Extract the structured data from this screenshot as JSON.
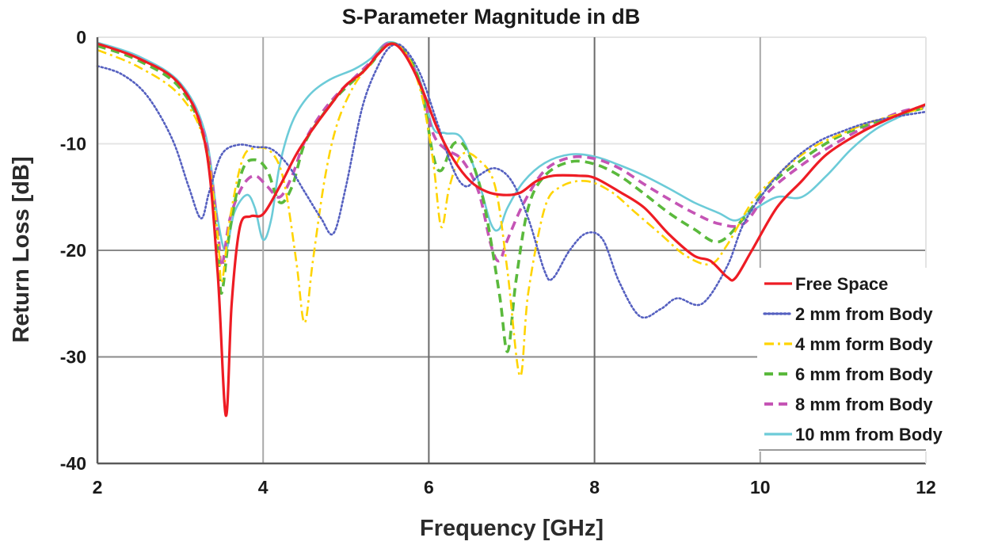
{
  "chart_data": {
    "type": "line",
    "title": "S-Parameter Magnitude in dB",
    "xlabel": "Frequency [GHz]",
    "ylabel": "Return Loss [dB]",
    "xlim": [
      2,
      12
    ],
    "ylim": [
      -40,
      0
    ],
    "xticks": [
      2,
      4,
      6,
      8,
      10,
      12
    ],
    "yticks": [
      0,
      -10,
      -20,
      -30,
      -40
    ],
    "grid": true,
    "legend_position": "bottom-right",
    "series": [
      {
        "name": "Free Space",
        "color": "#ee1c24",
        "dash": "solid",
        "points": [
          [
            2.0,
            -0.6
          ],
          [
            2.5,
            -2.0
          ],
          [
            3.0,
            -4.5
          ],
          [
            3.3,
            -10.0
          ],
          [
            3.45,
            -22.0
          ],
          [
            3.55,
            -35.5
          ],
          [
            3.62,
            -25.0
          ],
          [
            3.72,
            -17.8
          ],
          [
            3.85,
            -16.8
          ],
          [
            4.0,
            -16.6
          ],
          [
            4.2,
            -14.0
          ],
          [
            4.4,
            -11.0
          ],
          [
            4.6,
            -8.6
          ],
          [
            4.8,
            -6.5
          ],
          [
            5.0,
            -4.5
          ],
          [
            5.2,
            -3.3
          ],
          [
            5.4,
            -1.5
          ],
          [
            5.55,
            -0.6
          ],
          [
            5.7,
            -1.5
          ],
          [
            5.9,
            -4.5
          ],
          [
            6.1,
            -8.5
          ],
          [
            6.3,
            -11.5
          ],
          [
            6.5,
            -13.5
          ],
          [
            6.7,
            -14.5
          ],
          [
            6.9,
            -14.8
          ],
          [
            7.1,
            -14.6
          ],
          [
            7.3,
            -13.5
          ],
          [
            7.5,
            -13.0
          ],
          [
            7.8,
            -13.0
          ],
          [
            8.0,
            -13.2
          ],
          [
            8.3,
            -14.5
          ],
          [
            8.6,
            -16.0
          ],
          [
            8.9,
            -18.5
          ],
          [
            9.2,
            -20.5
          ],
          [
            9.4,
            -21.0
          ],
          [
            9.6,
            -22.5
          ],
          [
            9.7,
            -22.6
          ],
          [
            9.9,
            -20.0
          ],
          [
            10.2,
            -16.0
          ],
          [
            10.5,
            -13.5
          ],
          [
            10.8,
            -11.0
          ],
          [
            11.2,
            -9.0
          ],
          [
            11.6,
            -7.5
          ],
          [
            12.0,
            -6.3
          ]
        ]
      },
      {
        "name": "2 mm from Body",
        "color": "#5560c0",
        "dash": "dot",
        "points": [
          [
            2.0,
            -2.7
          ],
          [
            2.3,
            -3.5
          ],
          [
            2.6,
            -5.5
          ],
          [
            2.9,
            -9.5
          ],
          [
            3.1,
            -14.0
          ],
          [
            3.25,
            -17.0
          ],
          [
            3.35,
            -14.5
          ],
          [
            3.5,
            -11.0
          ],
          [
            3.7,
            -10.1
          ],
          [
            3.9,
            -10.3
          ],
          [
            4.1,
            -10.5
          ],
          [
            4.3,
            -12.0
          ],
          [
            4.5,
            -14.5
          ],
          [
            4.7,
            -17.0
          ],
          [
            4.85,
            -18.4
          ],
          [
            5.0,
            -14.0
          ],
          [
            5.2,
            -6.5
          ],
          [
            5.4,
            -2.5
          ],
          [
            5.55,
            -0.8
          ],
          [
            5.7,
            -1.0
          ],
          [
            5.9,
            -3.5
          ],
          [
            6.1,
            -8.0
          ],
          [
            6.3,
            -12.5
          ],
          [
            6.45,
            -14.0
          ],
          [
            6.6,
            -13.0
          ],
          [
            6.8,
            -12.3
          ],
          [
            7.0,
            -13.5
          ],
          [
            7.2,
            -17.0
          ],
          [
            7.4,
            -22.0
          ],
          [
            7.5,
            -22.6
          ],
          [
            7.7,
            -20.0
          ],
          [
            7.9,
            -18.4
          ],
          [
            8.1,
            -19.0
          ],
          [
            8.3,
            -23.0
          ],
          [
            8.55,
            -26.2
          ],
          [
            8.8,
            -25.5
          ],
          [
            9.0,
            -24.5
          ],
          [
            9.3,
            -25.0
          ],
          [
            9.6,
            -21.5
          ],
          [
            9.8,
            -17.5
          ],
          [
            10.1,
            -14.0
          ],
          [
            10.4,
            -11.5
          ],
          [
            10.7,
            -9.8
          ],
          [
            11.0,
            -8.8
          ],
          [
            11.3,
            -8.0
          ],
          [
            11.6,
            -7.5
          ],
          [
            12.0,
            -7.0
          ]
        ]
      },
      {
        "name": "4 mm form Body",
        "color": "#ffd400",
        "dash": "dashdot",
        "points": [
          [
            2.0,
            -1.2
          ],
          [
            2.5,
            -2.8
          ],
          [
            3.0,
            -5.5
          ],
          [
            3.3,
            -10.0
          ],
          [
            3.45,
            -18.5
          ],
          [
            3.5,
            -23.0
          ],
          [
            3.6,
            -17.0
          ],
          [
            3.75,
            -11.5
          ],
          [
            3.9,
            -10.4
          ],
          [
            4.1,
            -10.8
          ],
          [
            4.25,
            -13.5
          ],
          [
            4.4,
            -21.0
          ],
          [
            4.5,
            -26.8
          ],
          [
            4.6,
            -21.0
          ],
          [
            4.75,
            -13.0
          ],
          [
            4.9,
            -8.0
          ],
          [
            5.1,
            -4.5
          ],
          [
            5.3,
            -2.5
          ],
          [
            5.5,
            -0.8
          ],
          [
            5.7,
            -1.2
          ],
          [
            5.9,
            -5.0
          ],
          [
            6.05,
            -11.5
          ],
          [
            6.15,
            -17.8
          ],
          [
            6.25,
            -14.0
          ],
          [
            6.4,
            -11.0
          ],
          [
            6.6,
            -11.5
          ],
          [
            6.8,
            -14.0
          ],
          [
            6.95,
            -22.0
          ],
          [
            7.1,
            -31.8
          ],
          [
            7.2,
            -24.0
          ],
          [
            7.4,
            -16.0
          ],
          [
            7.6,
            -14.0
          ],
          [
            7.9,
            -13.5
          ],
          [
            8.2,
            -14.5
          ],
          [
            8.5,
            -16.5
          ],
          [
            8.8,
            -18.5
          ],
          [
            9.1,
            -20.5
          ],
          [
            9.4,
            -21.3
          ],
          [
            9.6,
            -19.5
          ],
          [
            9.9,
            -15.5
          ],
          [
            10.2,
            -13.0
          ],
          [
            10.6,
            -10.5
          ],
          [
            11.0,
            -9.0
          ],
          [
            11.4,
            -7.8
          ],
          [
            12.0,
            -6.6
          ]
        ]
      },
      {
        "name": "6 mm from Body",
        "color": "#5ab93c",
        "dash": "dash",
        "points": [
          [
            2.0,
            -0.8
          ],
          [
            2.5,
            -2.2
          ],
          [
            3.0,
            -4.8
          ],
          [
            3.3,
            -10.0
          ],
          [
            3.45,
            -20.0
          ],
          [
            3.5,
            -24.0
          ],
          [
            3.6,
            -18.0
          ],
          [
            3.75,
            -12.5
          ],
          [
            3.9,
            -11.5
          ],
          [
            4.05,
            -12.5
          ],
          [
            4.2,
            -15.5
          ],
          [
            4.35,
            -14.0
          ],
          [
            4.5,
            -10.0
          ],
          [
            4.7,
            -7.5
          ],
          [
            4.9,
            -5.5
          ],
          [
            5.1,
            -4.0
          ],
          [
            5.3,
            -2.5
          ],
          [
            5.5,
            -0.7
          ],
          [
            5.7,
            -1.2
          ],
          [
            5.9,
            -4.5
          ],
          [
            6.05,
            -11.0
          ],
          [
            6.15,
            -12.5
          ],
          [
            6.3,
            -10.0
          ],
          [
            6.45,
            -10.5
          ],
          [
            6.65,
            -15.0
          ],
          [
            6.85,
            -24.0
          ],
          [
            6.95,
            -29.5
          ],
          [
            7.05,
            -23.0
          ],
          [
            7.2,
            -16.0
          ],
          [
            7.4,
            -13.0
          ],
          [
            7.7,
            -11.7
          ],
          [
            8.0,
            -11.9
          ],
          [
            8.3,
            -13.0
          ],
          [
            8.6,
            -14.7
          ],
          [
            8.9,
            -16.5
          ],
          [
            9.2,
            -18.0
          ],
          [
            9.5,
            -19.2
          ],
          [
            9.8,
            -17.0
          ],
          [
            10.1,
            -14.0
          ],
          [
            10.5,
            -11.5
          ],
          [
            10.9,
            -9.5
          ],
          [
            11.3,
            -8.2
          ],
          [
            11.7,
            -7.2
          ],
          [
            12.0,
            -6.6
          ]
        ]
      },
      {
        "name": "8 mm from Body",
        "color": "#c554b5",
        "dash": "dash",
        "points": [
          [
            2.0,
            -0.7
          ],
          [
            2.5,
            -2.0
          ],
          [
            3.0,
            -4.5
          ],
          [
            3.3,
            -9.5
          ],
          [
            3.45,
            -18.0
          ],
          [
            3.5,
            -21.5
          ],
          [
            3.6,
            -17.0
          ],
          [
            3.75,
            -14.0
          ],
          [
            3.9,
            -13.0
          ],
          [
            4.05,
            -14.0
          ],
          [
            4.2,
            -15.0
          ],
          [
            4.35,
            -13.0
          ],
          [
            4.5,
            -9.8
          ],
          [
            4.7,
            -7.2
          ],
          [
            4.9,
            -5.3
          ],
          [
            5.1,
            -3.8
          ],
          [
            5.3,
            -2.3
          ],
          [
            5.5,
            -0.6
          ],
          [
            5.7,
            -1.3
          ],
          [
            5.9,
            -4.5
          ],
          [
            6.05,
            -9.0
          ],
          [
            6.2,
            -10.5
          ],
          [
            6.4,
            -11.5
          ],
          [
            6.6,
            -14.5
          ],
          [
            6.75,
            -19.5
          ],
          [
            6.85,
            -21.0
          ],
          [
            6.95,
            -19.0
          ],
          [
            7.15,
            -15.5
          ],
          [
            7.4,
            -12.5
          ],
          [
            7.7,
            -11.3
          ],
          [
            8.0,
            -11.4
          ],
          [
            8.3,
            -12.3
          ],
          [
            8.6,
            -13.8
          ],
          [
            8.9,
            -15.2
          ],
          [
            9.2,
            -16.5
          ],
          [
            9.5,
            -17.5
          ],
          [
            9.8,
            -17.5
          ],
          [
            10.1,
            -14.5
          ],
          [
            10.5,
            -12.0
          ],
          [
            10.9,
            -10.0
          ],
          [
            11.3,
            -8.3
          ],
          [
            11.7,
            -7.0
          ],
          [
            12.0,
            -6.5
          ]
        ]
      },
      {
        "name": "10 mm from Body",
        "color": "#6ccbd8",
        "dash": "solid",
        "points": [
          [
            2.0,
            -0.5
          ],
          [
            2.5,
            -1.8
          ],
          [
            3.0,
            -4.3
          ],
          [
            3.3,
            -9.0
          ],
          [
            3.45,
            -17.0
          ],
          [
            3.55,
            -20.0
          ],
          [
            3.65,
            -16.5
          ],
          [
            3.8,
            -14.8
          ],
          [
            3.9,
            -16.0
          ],
          [
            4.0,
            -19.0
          ],
          [
            4.1,
            -17.0
          ],
          [
            4.2,
            -12.0
          ],
          [
            4.35,
            -8.0
          ],
          [
            4.55,
            -5.5
          ],
          [
            4.8,
            -4.0
          ],
          [
            5.1,
            -3.0
          ],
          [
            5.3,
            -2.0
          ],
          [
            5.5,
            -0.5
          ],
          [
            5.7,
            -1.2
          ],
          [
            5.9,
            -4.2
          ],
          [
            6.05,
            -8.5
          ],
          [
            6.2,
            -9.0
          ],
          [
            6.4,
            -9.5
          ],
          [
            6.6,
            -13.5
          ],
          [
            6.75,
            -17.5
          ],
          [
            6.85,
            -18.0
          ],
          [
            6.95,
            -16.0
          ],
          [
            7.15,
            -13.5
          ],
          [
            7.4,
            -11.8
          ],
          [
            7.7,
            -11.0
          ],
          [
            8.0,
            -11.2
          ],
          [
            8.3,
            -12.0
          ],
          [
            8.6,
            -13.0
          ],
          [
            8.9,
            -14.2
          ],
          [
            9.2,
            -15.5
          ],
          [
            9.5,
            -16.5
          ],
          [
            9.7,
            -17.2
          ],
          [
            9.9,
            -16.3
          ],
          [
            10.2,
            -15.0
          ],
          [
            10.5,
            -15.0
          ],
          [
            10.8,
            -13.0
          ],
          [
            11.1,
            -10.5
          ],
          [
            11.4,
            -8.6
          ],
          [
            11.7,
            -7.4
          ],
          [
            12.0,
            -6.4
          ]
        ]
      }
    ]
  }
}
